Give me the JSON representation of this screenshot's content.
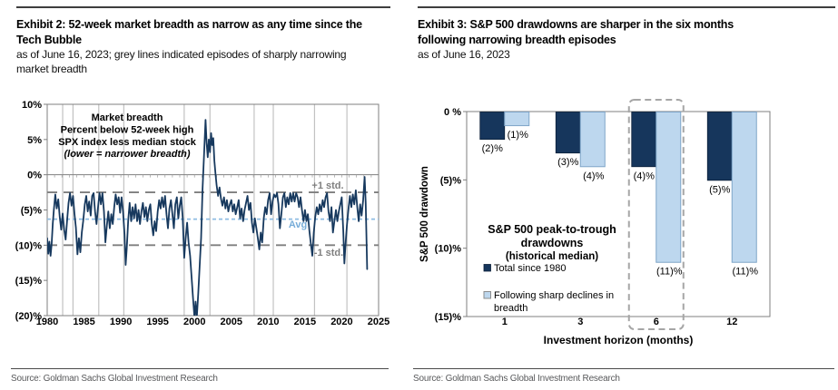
{
  "left_panel": {
    "title_lines": [
      "Exhibit 2: 52-week market breadth as narrow as any time since the",
      "Tech Bubble"
    ],
    "subtitle_lines": [
      "as of June 16, 2023; grey lines indicated episodes of sharply narrowing",
      "market breadth"
    ],
    "source": "Source: Goldman Sachs Global Investment Research"
  },
  "right_panel": {
    "title_lines": [
      "Exhibit 3: S&P 500 drawdowns are sharper in the six months",
      "following narrowing breadth episodes"
    ],
    "subtitle_lines": [
      "as of June 16, 2023"
    ],
    "source": "Source: Goldman Sachs Global Investment Research"
  },
  "chart_data": [
    {
      "type": "line",
      "name": "market-breadth-line-chart",
      "title_lines": [
        "Market breadth",
        "Percent below 52-week high",
        "SPX index less median stock",
        "(lower = narrower breadth)"
      ],
      "xlim": [
        1980,
        2025
      ],
      "ylim": [
        -20,
        10
      ],
      "x_ticks": [
        1980,
        1985,
        1990,
        1995,
        2000,
        2005,
        2010,
        2015,
        2020,
        2025
      ],
      "y_tick_values": [
        10,
        5,
        0,
        -5,
        -10,
        -15,
        -20
      ],
      "y_tick_labels": [
        "10%",
        "5%",
        "0%",
        "(5)%",
        "(10)%",
        "(15)%",
        "(20)%"
      ],
      "reference_lines": {
        "plus1std": {
          "value": -2.5,
          "label": "+1 std."
        },
        "avg": {
          "value": -6.3,
          "label": "Avg"
        },
        "minus1std": {
          "value": -10,
          "label": "-1 std."
        }
      },
      "episode_years": [
        1982.1,
        1983.5,
        1987.0,
        1990.4,
        1998.6,
        2002.1,
        2008.1,
        2010.7,
        2016.3,
        2020.7
      ],
      "colors": {
        "series": "#17395E",
        "avg": "#8FBDE3",
        "avg_text": "#76ACD8",
        "std": "#7F7F7F",
        "episode": "#C2C2C2",
        "axis": "#7F7F7F",
        "tick_text": "#000000"
      },
      "series": [
        [
          1980.0,
          -9.0
        ],
        [
          1980.15,
          -11.2
        ],
        [
          1980.3,
          -9.5
        ],
        [
          1980.45,
          -11.5
        ],
        [
          1980.6,
          -9.8
        ],
        [
          1980.75,
          -7.0
        ],
        [
          1980.9,
          -5.0
        ],
        [
          1981.1,
          -2.8
        ],
        [
          1981.3,
          -4.8
        ],
        [
          1981.5,
          -3.5
        ],
        [
          1981.7,
          -6.0
        ],
        [
          1981.9,
          -7.8
        ],
        [
          1982.1,
          -5.5
        ],
        [
          1982.3,
          -7.8
        ],
        [
          1982.5,
          -9.2
        ],
        [
          1982.7,
          -6.5
        ],
        [
          1982.9,
          -4.0
        ],
        [
          1983.1,
          -2.6
        ],
        [
          1983.3,
          -4.4
        ],
        [
          1983.5,
          -3.0
        ],
        [
          1983.7,
          -5.5
        ],
        [
          1983.9,
          -7.5
        ],
        [
          1984.1,
          -11.3
        ],
        [
          1984.3,
          -9.0
        ],
        [
          1984.5,
          -11.0
        ],
        [
          1984.7,
          -8.2
        ],
        [
          1984.9,
          -6.5
        ],
        [
          1985.1,
          -4.2
        ],
        [
          1985.3,
          -3.0
        ],
        [
          1985.5,
          -5.2
        ],
        [
          1985.7,
          -3.8
        ],
        [
          1985.9,
          -5.8
        ],
        [
          1986.1,
          -3.0
        ],
        [
          1986.3,
          -2.6
        ],
        [
          1986.5,
          -5.2
        ],
        [
          1986.7,
          -7.0
        ],
        [
          1986.9,
          -4.6
        ],
        [
          1987.1,
          -2.6
        ],
        [
          1987.3,
          -4.2
        ],
        [
          1987.5,
          -2.6
        ],
        [
          1987.7,
          -5.2
        ],
        [
          1987.9,
          -9.6
        ],
        [
          1988.1,
          -7.2
        ],
        [
          1988.3,
          -5.2
        ],
        [
          1988.5,
          -7.6
        ],
        [
          1988.7,
          -5.6
        ],
        [
          1988.9,
          -7.0
        ],
        [
          1989.1,
          -4.6
        ],
        [
          1989.3,
          -2.8
        ],
        [
          1989.5,
          -4.2
        ],
        [
          1989.7,
          -3.2
        ],
        [
          1989.9,
          -5.4
        ],
        [
          1990.1,
          -3.2
        ],
        [
          1990.3,
          -5.2
        ],
        [
          1990.5,
          -8.5
        ],
        [
          1990.65,
          -12.8
        ],
        [
          1990.8,
          -10.5
        ],
        [
          1991.0,
          -6.5
        ],
        [
          1991.2,
          -4.0
        ],
        [
          1991.4,
          -6.6
        ],
        [
          1991.6,
          -4.6
        ],
        [
          1991.8,
          -6.2
        ],
        [
          1992.0,
          -4.2
        ],
        [
          1992.2,
          -6.6
        ],
        [
          1992.4,
          -5.0
        ],
        [
          1992.6,
          -7.0
        ],
        [
          1992.8,
          -5.2
        ],
        [
          1993.0,
          -4.0
        ],
        [
          1993.2,
          -6.0
        ],
        [
          1993.4,
          -4.6
        ],
        [
          1993.6,
          -6.6
        ],
        [
          1993.8,
          -5.0
        ],
        [
          1994.0,
          -4.2
        ],
        [
          1994.2,
          -7.0
        ],
        [
          1994.4,
          -8.6
        ],
        [
          1994.6,
          -6.6
        ],
        [
          1994.8,
          -8.0
        ],
        [
          1995.0,
          -5.2
        ],
        [
          1995.2,
          -3.6
        ],
        [
          1995.4,
          -4.8
        ],
        [
          1995.6,
          -3.2
        ],
        [
          1995.8,
          -4.6
        ],
        [
          1996.0,
          -3.0
        ],
        [
          1996.2,
          -5.6
        ],
        [
          1996.4,
          -7.6
        ],
        [
          1996.6,
          -4.8
        ],
        [
          1996.8,
          -3.6
        ],
        [
          1997.0,
          -5.6
        ],
        [
          1997.2,
          -7.6
        ],
        [
          1997.4,
          -4.2
        ],
        [
          1997.6,
          -3.2
        ],
        [
          1997.8,
          -6.2
        ],
        [
          1998.0,
          -4.4
        ],
        [
          1998.2,
          -3.2
        ],
        [
          1998.4,
          -6.0
        ],
        [
          1998.6,
          -11.8
        ],
        [
          1998.8,
          -9.0
        ],
        [
          1999.0,
          -6.8
        ],
        [
          1999.2,
          -9.6
        ],
        [
          1999.4,
          -11.5
        ],
        [
          1999.6,
          -14.5
        ],
        [
          1999.8,
          -17.5
        ],
        [
          2000.0,
          -20.3
        ],
        [
          2000.15,
          -18.0
        ],
        [
          2000.3,
          -20.4
        ],
        [
          2000.5,
          -17.0
        ],
        [
          2000.7,
          -13.0
        ],
        [
          2000.9,
          -9.0
        ],
        [
          2001.1,
          -2.0
        ],
        [
          2001.3,
          3.0
        ],
        [
          2001.5,
          7.8
        ],
        [
          2001.65,
          4.5
        ],
        [
          2001.8,
          2.5
        ],
        [
          2001.95,
          5.0
        ],
        [
          2002.1,
          3.2
        ],
        [
          2002.25,
          5.9
        ],
        [
          2002.4,
          4.2
        ],
        [
          2002.55,
          5.2
        ],
        [
          2002.7,
          2.0
        ],
        [
          2002.85,
          0.2
        ],
        [
          2003.0,
          -1.5
        ],
        [
          2003.2,
          -3.0
        ],
        [
          2003.4,
          -1.8
        ],
        [
          2003.6,
          -3.4
        ],
        [
          2003.8,
          -4.4
        ],
        [
          2004.0,
          -3.2
        ],
        [
          2004.2,
          -4.8
        ],
        [
          2004.4,
          -3.6
        ],
        [
          2004.6,
          -5.2
        ],
        [
          2004.8,
          -4.2
        ],
        [
          2005.0,
          -3.6
        ],
        [
          2005.2,
          -5.2
        ],
        [
          2005.4,
          -4.2
        ],
        [
          2005.6,
          -5.6
        ],
        [
          2005.8,
          -4.6
        ],
        [
          2006.0,
          -3.6
        ],
        [
          2006.2,
          -6.2
        ],
        [
          2006.4,
          -4.8
        ],
        [
          2006.6,
          -6.6
        ],
        [
          2006.8,
          -5.0
        ],
        [
          2007.0,
          -4.0
        ],
        [
          2007.2,
          -3.0
        ],
        [
          2007.4,
          -5.0
        ],
        [
          2007.6,
          -4.0
        ],
        [
          2007.8,
          -6.8
        ],
        [
          2008.0,
          -8.2
        ],
        [
          2008.2,
          -6.2
        ],
        [
          2008.4,
          -7.6
        ],
        [
          2008.6,
          -9.0
        ],
        [
          2008.8,
          -10.6
        ],
        [
          2009.0,
          -8.2
        ],
        [
          2009.2,
          -9.6
        ],
        [
          2009.4,
          -6.2
        ],
        [
          2009.6,
          -4.6
        ],
        [
          2009.8,
          -5.6
        ],
        [
          2010.0,
          -3.6
        ],
        [
          2010.2,
          -2.6
        ],
        [
          2010.4,
          -5.6
        ],
        [
          2010.6,
          -3.8
        ],
        [
          2010.8,
          -2.8
        ],
        [
          2011.0,
          -3.2
        ],
        [
          2011.2,
          -2.6
        ],
        [
          2011.4,
          -4.2
        ],
        [
          2011.6,
          -7.6
        ],
        [
          2011.8,
          -5.6
        ],
        [
          2012.0,
          -3.2
        ],
        [
          2012.2,
          -2.6
        ],
        [
          2012.4,
          -4.6
        ],
        [
          2012.6,
          -3.2
        ],
        [
          2012.8,
          -4.2
        ],
        [
          2013.0,
          -2.6
        ],
        [
          2013.2,
          -3.8
        ],
        [
          2013.4,
          -2.6
        ],
        [
          2013.6,
          -3.8
        ],
        [
          2013.8,
          -2.6
        ],
        [
          2014.0,
          -3.2
        ],
        [
          2014.2,
          -4.6
        ],
        [
          2014.4,
          -3.2
        ],
        [
          2014.6,
          -5.0
        ],
        [
          2014.8,
          -6.6
        ],
        [
          2015.0,
          -5.0
        ],
        [
          2015.2,
          -6.6
        ],
        [
          2015.4,
          -5.6
        ],
        [
          2015.6,
          -8.0
        ],
        [
          2015.8,
          -9.8
        ],
        [
          2016.0,
          -11.5
        ],
        [
          2016.2,
          -8.2
        ],
        [
          2016.4,
          -6.0
        ],
        [
          2016.6,
          -4.6
        ],
        [
          2016.8,
          -5.6
        ],
        [
          2017.0,
          -4.2
        ],
        [
          2017.2,
          -5.2
        ],
        [
          2017.4,
          -3.6
        ],
        [
          2017.6,
          -4.6
        ],
        [
          2017.8,
          -3.2
        ],
        [
          2018.0,
          -2.6
        ],
        [
          2018.2,
          -5.2
        ],
        [
          2018.4,
          -6.6
        ],
        [
          2018.6,
          -4.6
        ],
        [
          2018.8,
          -8.2
        ],
        [
          2019.0,
          -6.6
        ],
        [
          2019.2,
          -5.0
        ],
        [
          2019.4,
          -6.6
        ],
        [
          2019.6,
          -5.2
        ],
        [
          2019.8,
          -4.2
        ],
        [
          2020.0,
          -3.2
        ],
        [
          2020.2,
          -8.0
        ],
        [
          2020.35,
          -12.6
        ],
        [
          2020.5,
          -10.0
        ],
        [
          2020.7,
          -7.2
        ],
        [
          2020.9,
          -5.0
        ],
        [
          2021.1,
          -3.0
        ],
        [
          2021.3,
          -4.6
        ],
        [
          2021.5,
          -2.8
        ],
        [
          2021.7,
          -4.2
        ],
        [
          2021.9,
          -2.2
        ],
        [
          2022.1,
          -4.6
        ],
        [
          2022.3,
          -6.6
        ],
        [
          2022.5,
          -4.2
        ],
        [
          2022.7,
          -5.8
        ],
        [
          2022.9,
          -3.6
        ],
        [
          2023.1,
          -0.3
        ],
        [
          2023.25,
          -4.0
        ],
        [
          2023.45,
          -13.4
        ]
      ]
    },
    {
      "type": "bar",
      "name": "drawdown-bar-chart",
      "categories": [
        "1",
        "3",
        "6",
        "12"
      ],
      "series": [
        {
          "name": "Total since 1980",
          "legend_lines": [
            "Total since 1980"
          ],
          "values": [
            -2,
            -3,
            -4,
            -5
          ],
          "labels": [
            "(2)%",
            "(3)%",
            "(4)%",
            "(5)%"
          ],
          "color": "#16365C",
          "border": "#0B1F38"
        },
        {
          "name": "Following sharp declines in breadth",
          "legend_lines": [
            "Following sharp declines in",
            "breadth"
          ],
          "values": [
            -1,
            -4,
            -11,
            -11
          ],
          "labels": [
            "(1)%",
            "(4)%",
            "(11)%",
            "(11)%"
          ],
          "color": "#BDD7EE",
          "border": "#7FA5C8"
        }
      ],
      "ylim": [
        -15,
        0
      ],
      "y_tick_values": [
        0,
        -5,
        -10,
        -15
      ],
      "y_tick_labels": [
        "0 %",
        "(5)%",
        "(10)%",
        "(15)%"
      ],
      "xlabel": "Investment horizon (months)",
      "ylabel": "S&P 500 drawdown",
      "annotation_lines": [
        "S&P 500 peak-to-trough",
        "drawdowns",
        "(historical median)"
      ],
      "highlight_category": "6",
      "colors": {
        "axis": "#7F7F7F",
        "highlight_box": "#A6A6A6",
        "text": "#000000"
      }
    }
  ]
}
